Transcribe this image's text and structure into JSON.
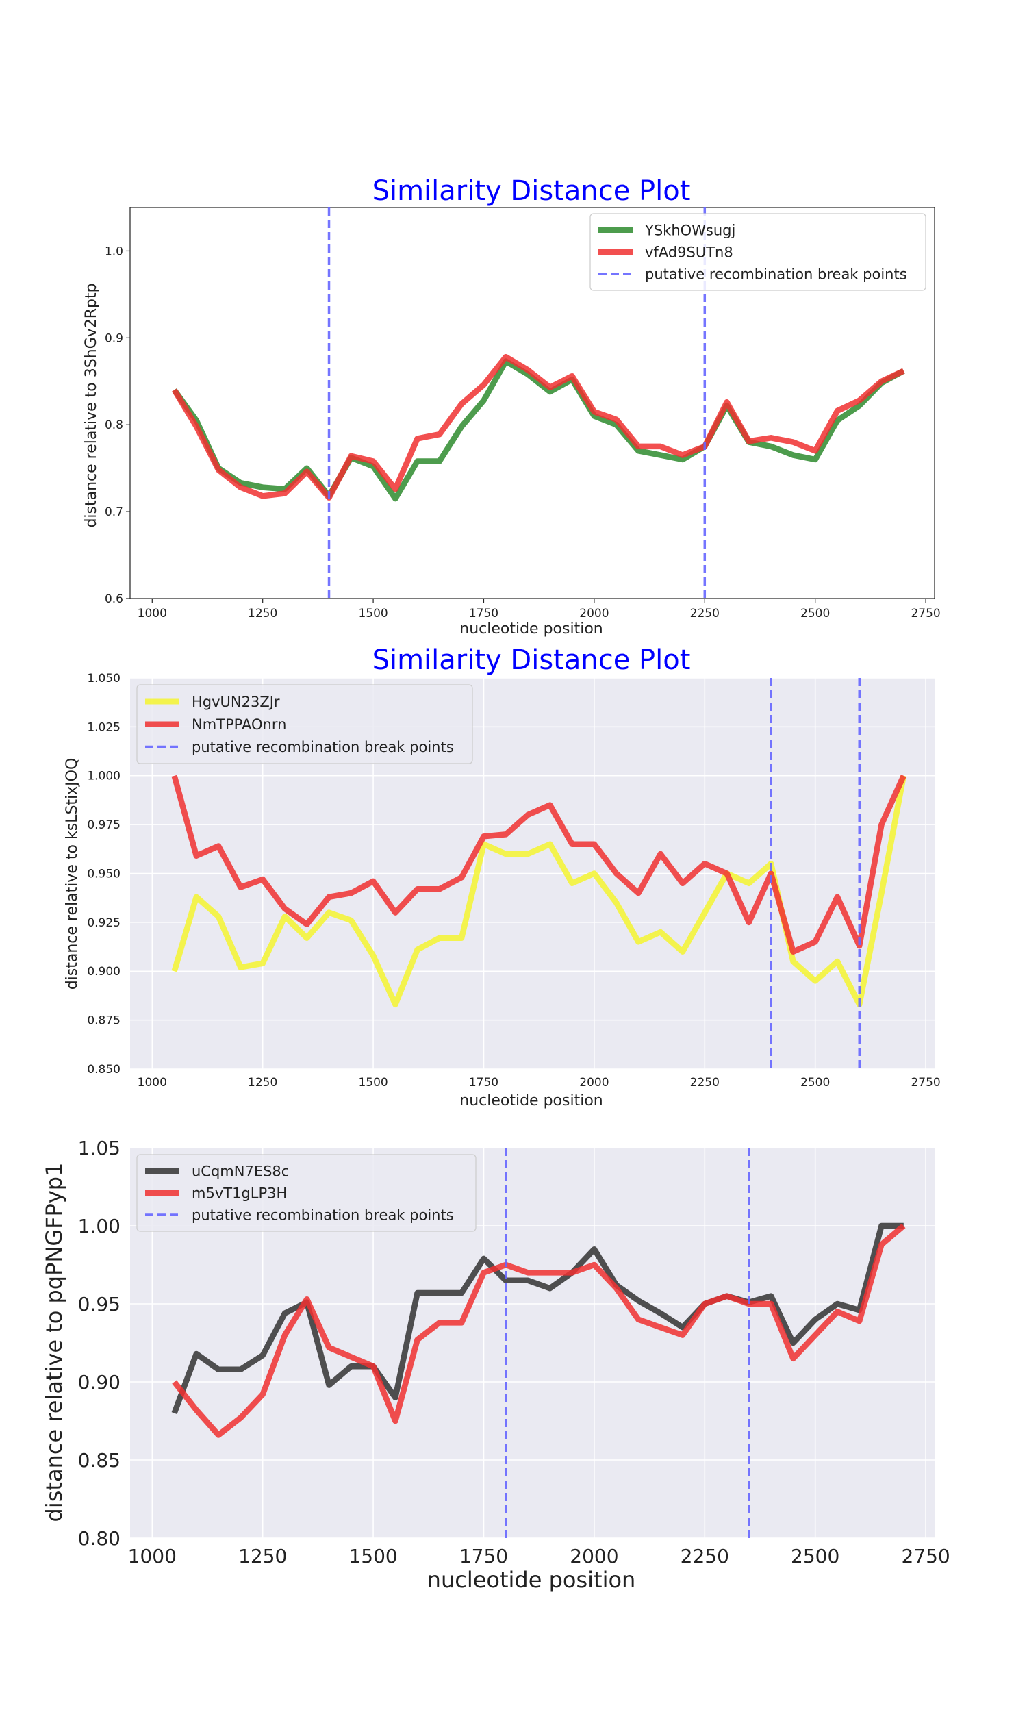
{
  "figure": {
    "background": "#ffffff"
  },
  "chart_data": [
    {
      "type": "line",
      "title": "Similarity Distance Plot",
      "xlabel": "nucleotide position",
      "ylabel": "distance relative to 3ShGv2Rptp",
      "xlim": [
        950,
        2770
      ],
      "ylim": [
        0.6,
        1.05
      ],
      "xticks": [
        1000,
        1250,
        1500,
        1750,
        2000,
        2250,
        2500,
        2750
      ],
      "yticks": [
        0.6,
        0.7,
        0.8,
        0.9,
        1.0
      ],
      "ytick_labels": [
        "0.6",
        "0.7",
        "0.8",
        "0.9",
        "1.0"
      ],
      "style": "white",
      "grid": false,
      "legend_position": "top-right",
      "x": [
        1050,
        1100,
        1150,
        1200,
        1250,
        1300,
        1350,
        1400,
        1450,
        1500,
        1550,
        1600,
        1650,
        1700,
        1750,
        1800,
        1850,
        1900,
        1950,
        2000,
        2050,
        2100,
        2150,
        2200,
        2250,
        2300,
        2350,
        2400,
        2450,
        2500,
        2550,
        2600,
        2650,
        2700
      ],
      "series": [
        {
          "name": "YSkhOWsugj",
          "color": "#2e8b2e",
          "values": [
            0.84,
            0.805,
            0.75,
            0.733,
            0.728,
            0.726,
            0.75,
            0.718,
            0.762,
            0.752,
            0.715,
            0.758,
            0.758,
            0.798,
            0.828,
            0.873,
            0.858,
            0.838,
            0.852,
            0.81,
            0.8,
            0.77,
            0.765,
            0.76,
            0.775,
            0.822,
            0.78,
            0.775,
            0.765,
            0.76,
            0.805,
            0.822,
            0.848,
            0.862
          ]
        },
        {
          "name": "vfAd9SUTn8",
          "color": "#f03030",
          "values": [
            0.84,
            0.798,
            0.748,
            0.728,
            0.718,
            0.721,
            0.746,
            0.716,
            0.764,
            0.758,
            0.726,
            0.784,
            0.789,
            0.824,
            0.846,
            0.878,
            0.863,
            0.843,
            0.856,
            0.815,
            0.806,
            0.775,
            0.775,
            0.765,
            0.775,
            0.826,
            0.781,
            0.785,
            0.78,
            0.77,
            0.816,
            0.828,
            0.85,
            0.862
          ]
        }
      ],
      "breakpoints": [
        1400,
        2250
      ],
      "breakpoint_label": "putative recombination break points",
      "breakpoint_color": "#6666ff"
    },
    {
      "type": "line",
      "title": "Similarity Distance Plot",
      "xlabel": "nucleotide position",
      "ylabel": "distance relative to ksLStixJOQ",
      "xlim": [
        950,
        2770
      ],
      "ylim": [
        0.85,
        1.05
      ],
      "xticks": [
        1000,
        1250,
        1500,
        1750,
        2000,
        2250,
        2500,
        2750
      ],
      "yticks": [
        0.85,
        0.875,
        0.9,
        0.925,
        0.95,
        0.975,
        1.0,
        1.025,
        1.05
      ],
      "ytick_labels": [
        "0.850",
        "0.875",
        "0.900",
        "0.925",
        "0.950",
        "0.975",
        "1.000",
        "1.025",
        "1.050"
      ],
      "style": "darkgrid",
      "grid": true,
      "legend_position": "top-left",
      "x": [
        1050,
        1100,
        1150,
        1200,
        1250,
        1300,
        1350,
        1400,
        1450,
        1500,
        1550,
        1600,
        1650,
        1700,
        1750,
        1800,
        1850,
        1900,
        1950,
        2000,
        2050,
        2100,
        2150,
        2200,
        2250,
        2300,
        2350,
        2400,
        2450,
        2500,
        2550,
        2600,
        2650,
        2700
      ],
      "series": [
        {
          "name": "HgvUN23ZJr",
          "color": "#f5f530",
          "values": [
            0.9,
            0.938,
            0.928,
            0.902,
            0.904,
            0.928,
            0.917,
            0.93,
            0.926,
            0.908,
            0.883,
            0.911,
            0.917,
            0.917,
            0.965,
            0.96,
            0.96,
            0.965,
            0.945,
            0.95,
            0.935,
            0.915,
            0.92,
            0.91,
            0.93,
            0.95,
            0.945,
            0.955,
            0.905,
            0.895,
            0.905,
            0.883,
            0.94,
            1.0
          ]
        },
        {
          "name": "NmTPPAOnrn",
          "color": "#f03030",
          "values": [
            1.0,
            0.959,
            0.964,
            0.943,
            0.947,
            0.932,
            0.924,
            0.938,
            0.94,
            0.946,
            0.93,
            0.942,
            0.942,
            0.948,
            0.969,
            0.97,
            0.98,
            0.985,
            0.965,
            0.965,
            0.95,
            0.94,
            0.96,
            0.945,
            0.955,
            0.95,
            0.925,
            0.95,
            0.91,
            0.915,
            0.938,
            0.913,
            0.975,
            1.0
          ]
        }
      ],
      "breakpoints": [
        2400,
        2600
      ],
      "breakpoint_label": "putative recombination break points",
      "breakpoint_color": "#6666ff"
    },
    {
      "type": "line",
      "title": "",
      "xlabel": "nucleotide position",
      "ylabel": "distance relative to pqPNGFPyp1",
      "xlim": [
        950,
        2770
      ],
      "ylim": [
        0.8,
        1.05
      ],
      "xticks": [
        1000,
        1250,
        1500,
        1750,
        2000,
        2250,
        2500,
        2750
      ],
      "yticks": [
        0.8,
        0.85,
        0.9,
        0.95,
        1.0,
        1.05
      ],
      "ytick_labels": [
        "0.80",
        "0.85",
        "0.90",
        "0.95",
        "1.00",
        "1.05"
      ],
      "style": "darkgrid",
      "grid": true,
      "legend_position": "top-left",
      "x": [
        1050,
        1100,
        1150,
        1200,
        1250,
        1300,
        1350,
        1400,
        1450,
        1500,
        1550,
        1600,
        1650,
        1700,
        1750,
        1800,
        1850,
        1900,
        1950,
        2000,
        2050,
        2100,
        2150,
        2200,
        2250,
        2300,
        2350,
        2400,
        2450,
        2500,
        2550,
        2600,
        2650,
        2700
      ],
      "series": [
        {
          "name": "uCqmN7ES8c",
          "color": "#333333",
          "values": [
            0.88,
            0.918,
            0.908,
            0.908,
            0.917,
            0.944,
            0.951,
            0.898,
            0.91,
            0.91,
            0.89,
            0.957,
            0.957,
            0.957,
            0.979,
            0.965,
            0.965,
            0.96,
            0.97,
            0.985,
            0.962,
            0.952,
            0.944,
            0.935,
            0.95,
            0.955,
            0.951,
            0.955,
            0.925,
            0.94,
            0.95,
            0.946,
            1.0,
            1.0
          ]
        },
        {
          "name": "m5vT1gLP3H",
          "color": "#f03030",
          "values": [
            0.9,
            0.882,
            0.866,
            0.877,
            0.892,
            0.93,
            0.953,
            0.922,
            0.916,
            0.91,
            0.875,
            0.927,
            0.938,
            0.938,
            0.97,
            0.975,
            0.97,
            0.97,
            0.97,
            0.975,
            0.96,
            0.94,
            0.935,
            0.93,
            0.95,
            0.955,
            0.95,
            0.95,
            0.915,
            0.93,
            0.945,
            0.939,
            0.988,
            1.0
          ]
        }
      ],
      "breakpoints": [
        1800,
        2350
      ],
      "breakpoint_label": "putative recombination break points",
      "breakpoint_color": "#6666ff"
    }
  ]
}
